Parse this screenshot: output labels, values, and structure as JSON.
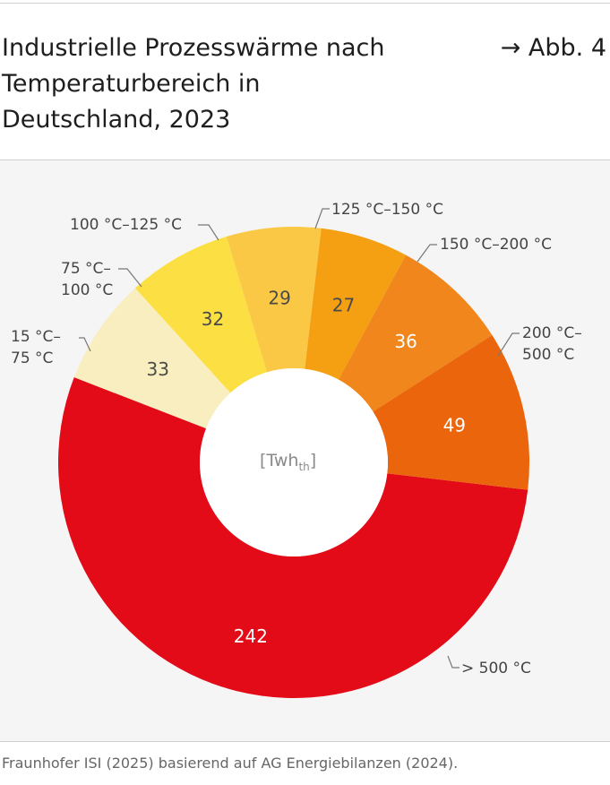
{
  "title": "Industrielle Prozesswärme nach Temperaturbereich in Deutschland, 2023",
  "figure_ref": "→ Abb. 4",
  "source": "Fraunhofer ISI (2025) basierend auf AG Energiebilanzen (2024).",
  "chart_data": {
    "type": "pie",
    "donut": true,
    "unit_label": "[Twh",
    "unit_sub": "th",
    "unit_close": "]",
    "categories": [
      "> 500 °C",
      "15 °C–75 °C",
      "75 °C–100 °C",
      "100 °C–125 °C",
      "125 °C–150 °C",
      "150 °C–200 °C",
      "200 °C–500 °C"
    ],
    "category_lines": [
      [
        "> 500 °C"
      ],
      [
        "15 °C–",
        "75 °C"
      ],
      [
        "75 °C–",
        "100 °C"
      ],
      [
        "100 °C–125 °C"
      ],
      [
        "125 °C–150 °C"
      ],
      [
        "150 °C–200 °C"
      ],
      [
        "200 °C–",
        "500 °C"
      ]
    ],
    "values": [
      242,
      33,
      32,
      29,
      27,
      36,
      49
    ],
    "colors": [
      "#e30b17",
      "#f9eebf",
      "#fcdf42",
      "#fbc846",
      "#f5a012",
      "#f0861c",
      "#ea650b"
    ],
    "label_colors": [
      "#ffffff",
      "#4a4a4a",
      "#4a4a4a",
      "#4a4a4a",
      "#4a4a4a",
      "#ffffff",
      "#ffffff"
    ]
  }
}
